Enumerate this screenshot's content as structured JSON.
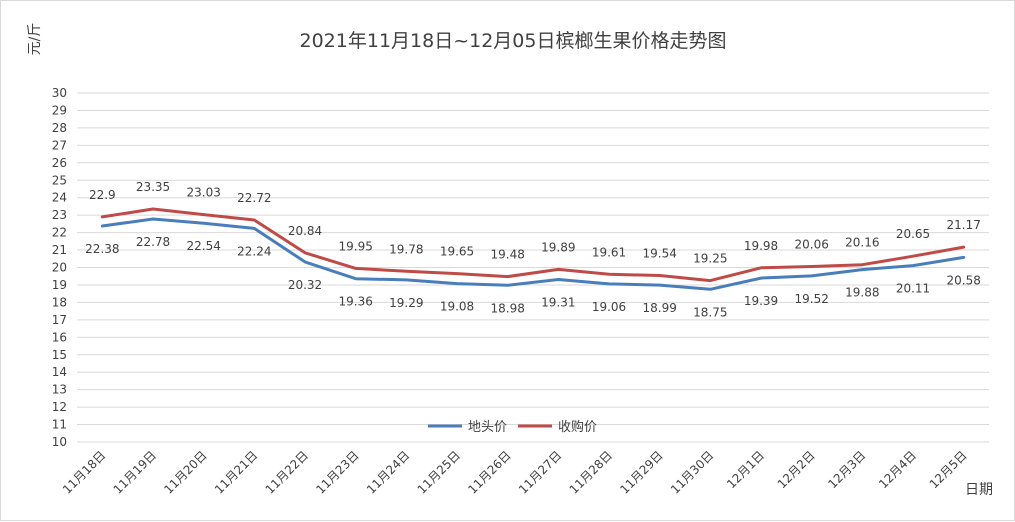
{
  "chart_data": {
    "type": "line",
    "title": "2021年11月18日~12月05日槟榔生果价格走势图",
    "ylabel": "元/斤",
    "xlabel": "日期",
    "ylim": [
      10,
      30
    ],
    "ytick_step": 1,
    "grid": true,
    "legend_position": "bottom-center",
    "categories": [
      "11月18日",
      "11月19日",
      "11月20日",
      "11月21日",
      "11月22日",
      "11月23日",
      "11月24日",
      "11月25日",
      "11月26日",
      "11月27日",
      "11月28日",
      "11月29日",
      "11月30日",
      "12月1日",
      "12月2日",
      "12月3日",
      "12月4日",
      "12月5日"
    ],
    "series": [
      {
        "name": "地头价",
        "color": "#4a7ebb",
        "label_position": "below",
        "values": [
          22.38,
          22.78,
          22.54,
          22.24,
          20.32,
          19.36,
          19.29,
          19.08,
          18.98,
          19.31,
          19.06,
          18.99,
          18.75,
          19.39,
          19.52,
          19.88,
          20.11,
          20.58
        ]
      },
      {
        "name": "收购价",
        "color": "#be4b48",
        "label_position": "above",
        "values": [
          22.9,
          23.35,
          23.03,
          22.72,
          20.84,
          19.95,
          19.78,
          19.65,
          19.48,
          19.89,
          19.61,
          19.54,
          19.25,
          19.98,
          20.06,
          20.16,
          20.65,
          21.17
        ]
      }
    ]
  }
}
